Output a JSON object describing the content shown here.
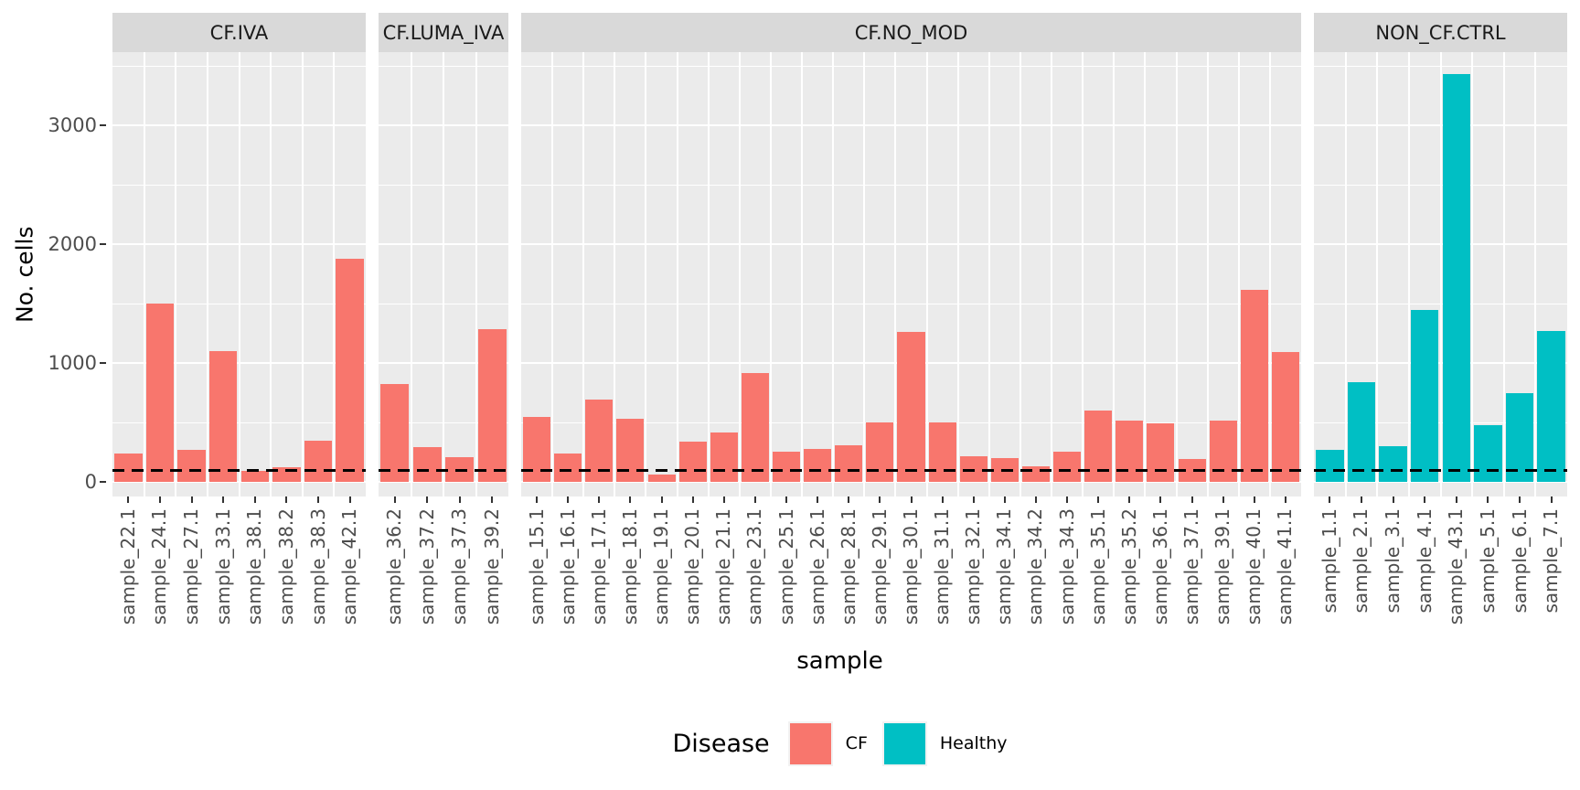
{
  "chart_data": {
    "type": "bar",
    "title": "",
    "xlabel": "sample",
    "ylabel": "No. cells",
    "yticks": [
      0,
      1000,
      2000,
      3000
    ],
    "ylim": [
      0,
      3600
    ],
    "grid": {
      "major": [
        0,
        1000,
        2000,
        3000
      ],
      "minor": [
        500,
        1500,
        2500,
        3500
      ],
      "color": "#FFFFFF",
      "panel_background": "#EBEBEB"
    },
    "threshold_line": {
      "y": 100,
      "style": "dashed",
      "color": "#000000"
    },
    "legend": {
      "title": "Disease",
      "position": "bottom",
      "entries": [
        {
          "label": "CF",
          "color": "#F8766D"
        },
        {
          "label": "Healthy",
          "color": "#00BFC4"
        }
      ]
    },
    "facets": [
      {
        "label": "CF.IVA",
        "disease": "CF",
        "color": "#F8766D",
        "categories": [
          "sample_22.1",
          "sample_24.1",
          "sample_27.1",
          "sample_33.1",
          "sample_38.1",
          "sample_38.2",
          "sample_38.3",
          "sample_42.1"
        ],
        "values": [
          235,
          1500,
          270,
          1100,
          90,
          120,
          345,
          1880
        ]
      },
      {
        "label": "CF.LUMA_IVA",
        "disease": "CF",
        "color": "#F8766D",
        "categories": [
          "sample_36.2",
          "sample_37.2",
          "sample_37.3",
          "sample_39.2"
        ],
        "values": [
          820,
          295,
          210,
          1285
        ]
      },
      {
        "label": "CF.NO_MOD",
        "disease": "CF",
        "color": "#F8766D",
        "categories": [
          "sample_15.1",
          "sample_16.1",
          "sample_17.1",
          "sample_18.1",
          "sample_19.1",
          "sample_20.1",
          "sample_21.1",
          "sample_23.1",
          "sample_25.1",
          "sample_26.1",
          "sample_28.1",
          "sample_29.1",
          "sample_30.1",
          "sample_31.1",
          "sample_32.1",
          "sample_34.1",
          "sample_34.2",
          "sample_34.3",
          "sample_35.1",
          "sample_35.2",
          "sample_36.1",
          "sample_37.1",
          "sample_39.1",
          "sample_40.1",
          "sample_41.1"
        ],
        "values": [
          545,
          235,
          690,
          530,
          60,
          335,
          415,
          915,
          255,
          280,
          310,
          500,
          1260,
          500,
          215,
          200,
          130,
          255,
          600,
          515,
          490,
          190,
          515,
          1615,
          1090
        ]
      },
      {
        "label": "NON_CF.CTRL",
        "disease": "Healthy",
        "color": "#00BFC4",
        "categories": [
          "sample_1.1",
          "sample_2.1",
          "sample_3.1",
          "sample_4.1",
          "sample_43.1",
          "sample_5.1",
          "sample_6.1",
          "sample_7.1"
        ],
        "values": [
          270,
          840,
          300,
          1450,
          3430,
          480,
          745,
          1270
        ]
      }
    ],
    "style_colors": {
      "strip_background": "#D9D9D9",
      "strip_text": "#1A1A1A",
      "axis_text": "#4D4D4D",
      "tick_mark": "#333333"
    }
  }
}
